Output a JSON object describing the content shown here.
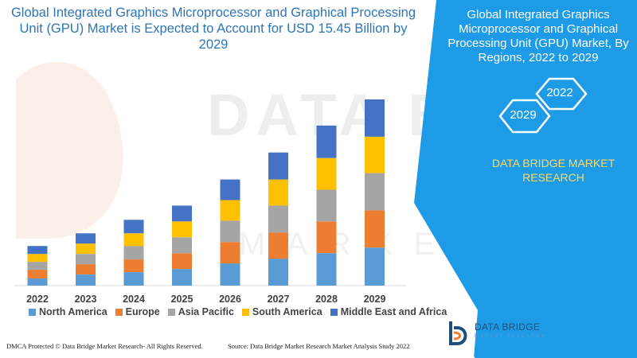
{
  "title": "Global Integrated Graphics Microprocessor and Graphical Processing Unit (GPU) Market is Expected to Account for USD 15.45 Billion by 2029",
  "panel": {
    "title": "Global Integrated Graphics Microprocessor and Graphical Processing Unit (GPU) Market, By Regions, 2022 to 2029",
    "hex_start": "2022",
    "hex_end": "2029",
    "brand": "DATA BRIDGE MARKET RESEARCH"
  },
  "logo": {
    "name": "DATA BRIDGE",
    "tagline": "MARKET RESEARCH"
  },
  "footer": {
    "left": "DMCA Protected © Data Bridge Market Research- All Rights Reserved.",
    "right": "Source: Data Bridge Market Research Market Analysis Study 2022"
  },
  "colors": {
    "north_america": "#5b9bd5",
    "europe": "#ed7d31",
    "asia_pacific": "#a5a5a5",
    "south_america": "#ffc000",
    "middle_east_africa": "#4472c4",
    "panel": "#1e9be6",
    "title": "#2e75b6"
  },
  "chart_data": {
    "type": "bar",
    "stacked": true,
    "categories": [
      "2022",
      "2023",
      "2024",
      "2025",
      "2026",
      "2027",
      "2028",
      "2029"
    ],
    "series": [
      {
        "name": "North America",
        "values": [
          9,
          14,
          17,
          21,
          28,
          34,
          41,
          48
        ]
      },
      {
        "name": "Europe",
        "values": [
          11,
          13,
          16,
          20,
          27,
          33,
          40,
          47
        ]
      },
      {
        "name": "Asia Pacific",
        "values": [
          10,
          13,
          17,
          20,
          27,
          34,
          40,
          47
        ]
      },
      {
        "name": "South America",
        "values": [
          10,
          13,
          16,
          20,
          26,
          33,
          40,
          46
        ]
      },
      {
        "name": "Middle East and Africa",
        "values": [
          10,
          13,
          17,
          20,
          26,
          34,
          41,
          47
        ]
      }
    ],
    "ylim": [
      0,
      240
    ],
    "axes_visible": false,
    "grid": false,
    "legend": "bottom"
  }
}
